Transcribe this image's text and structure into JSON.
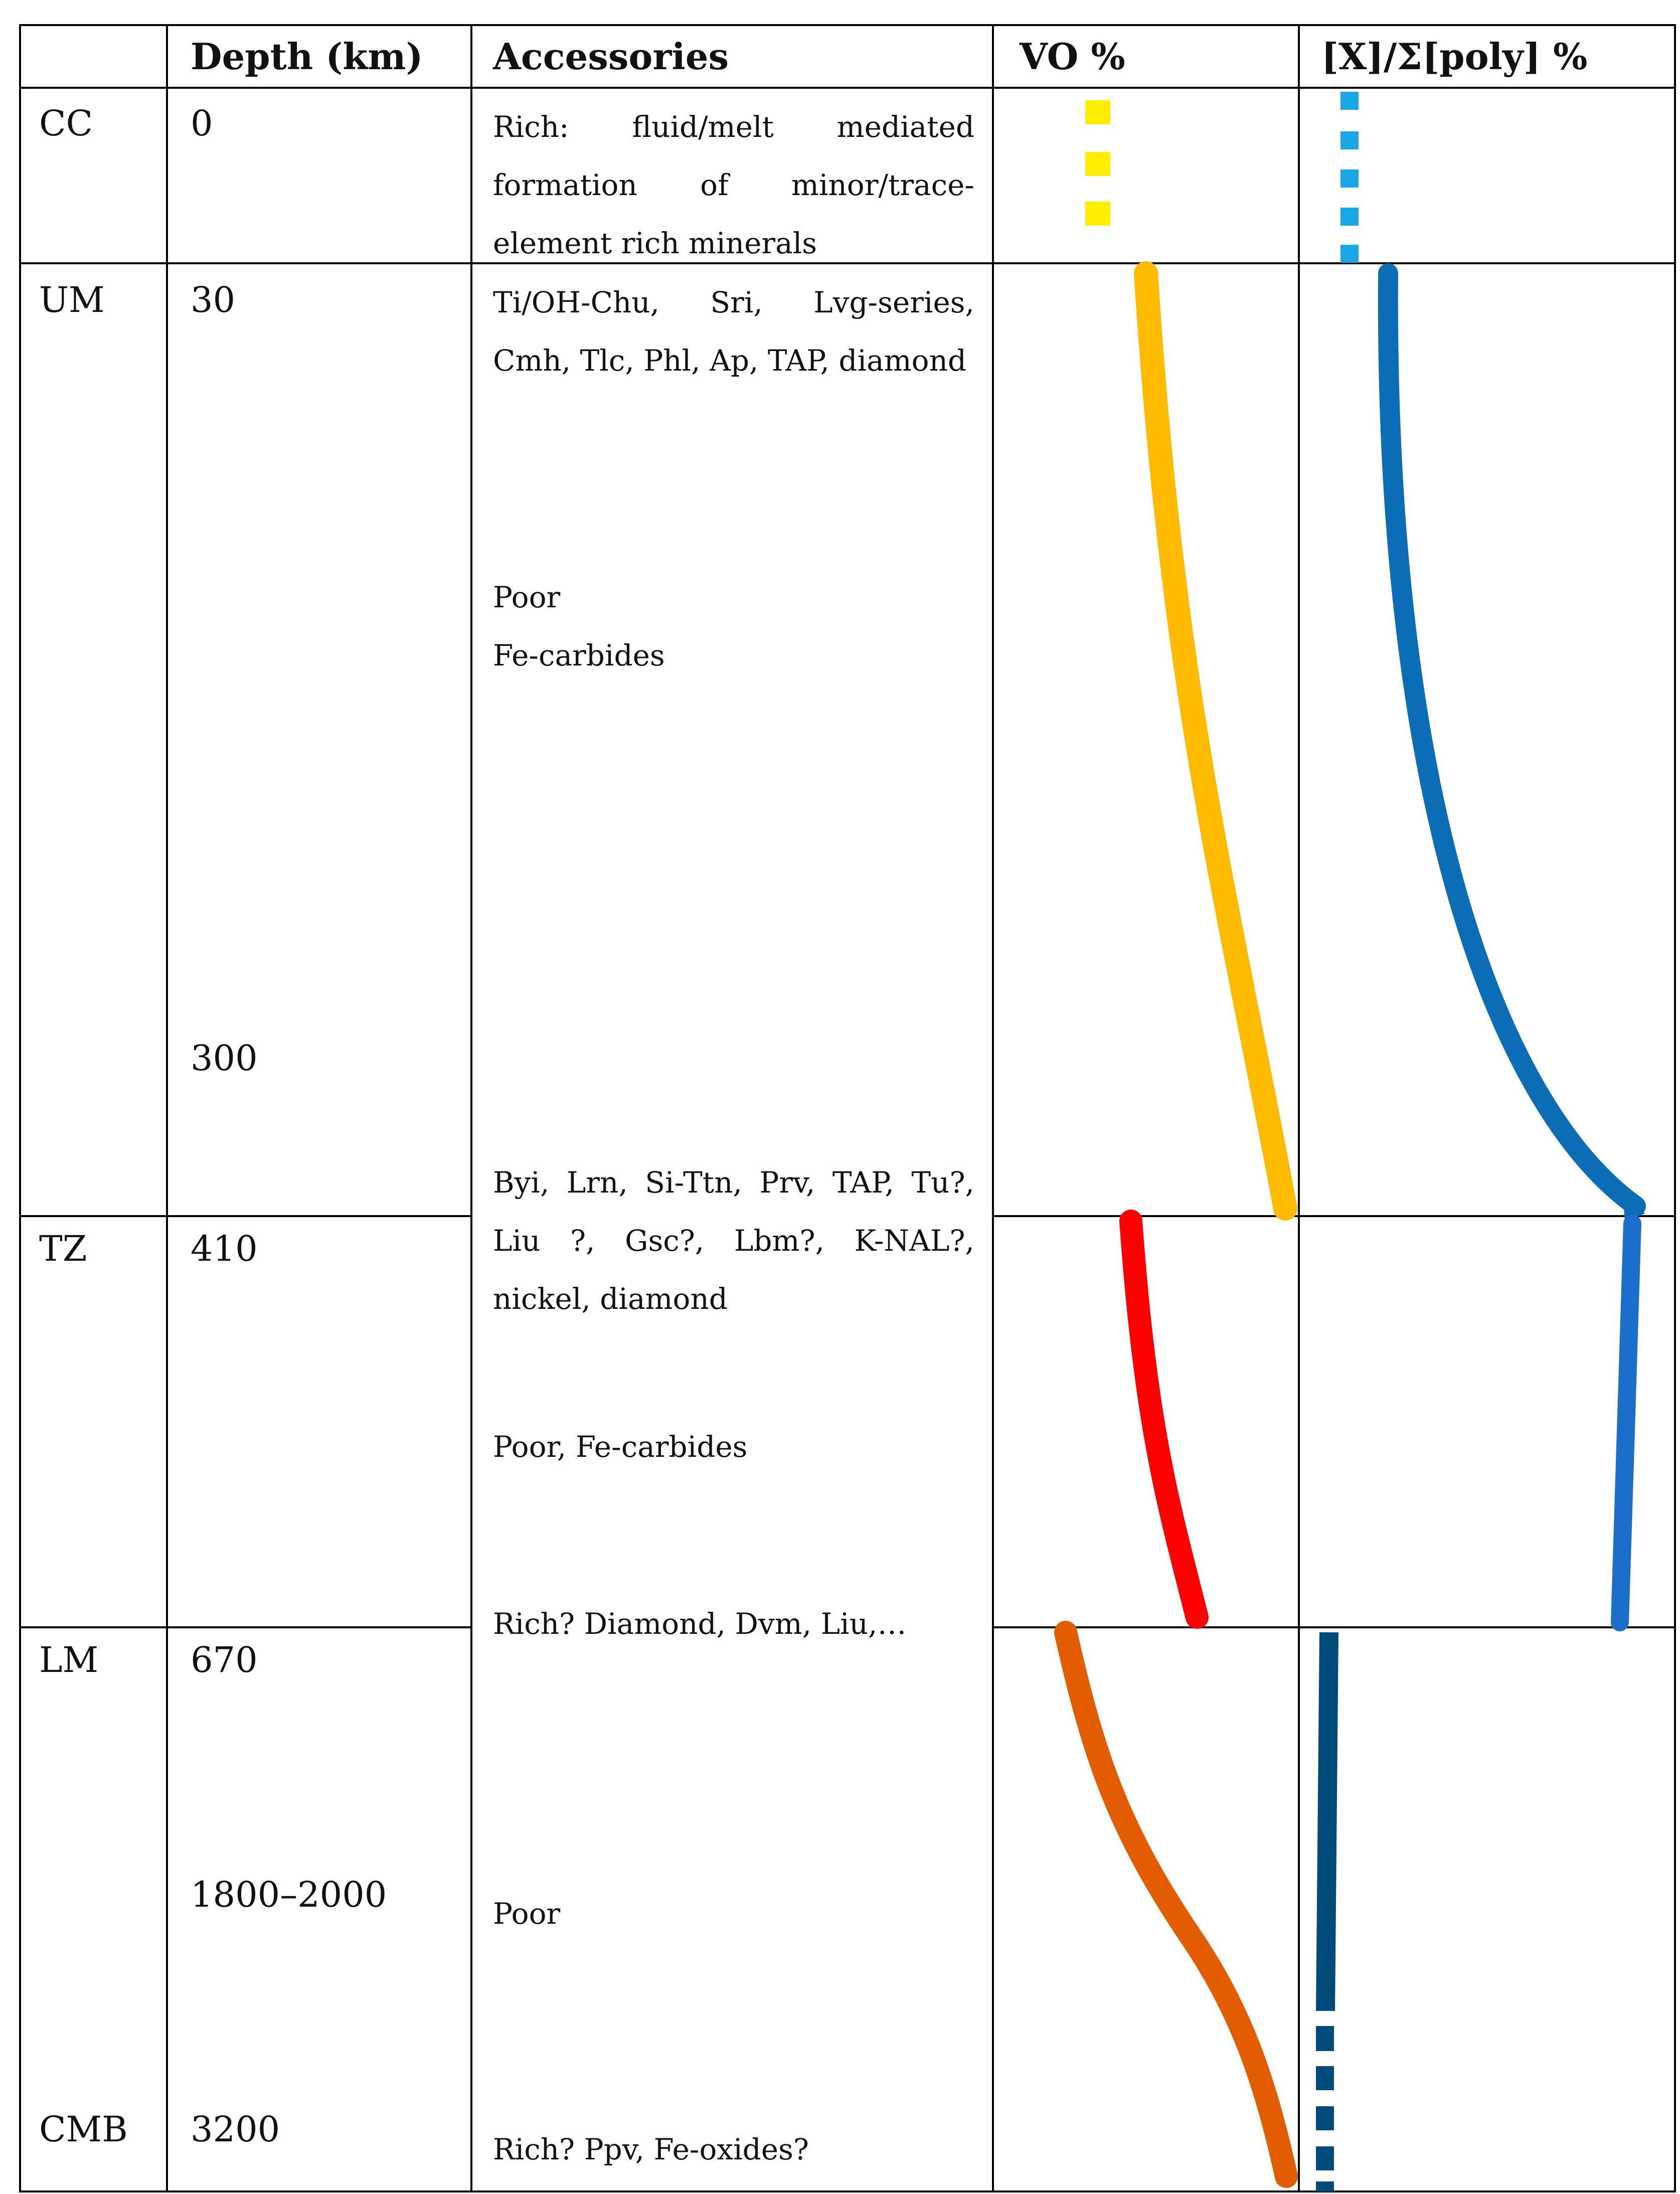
{
  "header": {
    "zone": "",
    "depth": "Depth (km)",
    "accessories": "Accessories",
    "vo": "VO %",
    "ratio": "[X]/Σ[poly] %"
  },
  "rows": [
    {
      "zone": "CC",
      "depths": [
        "0"
      ],
      "accessories": [
        "Rich: fluid/melt mediated formation of minor/trace-element rich minerals"
      ]
    },
    {
      "zone": "UM",
      "depths": [
        "30",
        "300"
      ],
      "accessories": [
        "Ti/OH-Chu, Sri, Lvg-series, Cmh, Tlc, Phl, Ap, TAP, diamond",
        "Poor",
        "Fe-carbides"
      ]
    },
    {
      "zone": "TZ",
      "depths": [
        "410"
      ],
      "accessories": [
        "Byi, Lrn, Si-Ttn, Prv, TAP, Tu?, Liu ?, Gsc?, Lbm?, K-NAL?, nickel, diamond",
        "Poor, Fe-carbides",
        "Rich? Diamond, Dvm, Liu,…"
      ]
    },
    {
      "zone": "LM",
      "depths": [
        "670",
        "1800–2000"
      ],
      "accessories": [
        "Poor"
      ]
    },
    {
      "zone": "CMB",
      "depths": [
        "3200"
      ],
      "accessories": [
        "Rich? Ppv, Fe-oxides?"
      ]
    }
  ],
  "curve_colors": {
    "cc_vo": "#ffee00",
    "cc_ratio": "#1aa7e6",
    "um_vo": "#ffbb00",
    "um_ratio": "#0b6db5",
    "tz_vo": "#ff0000",
    "tz_ratio": "#1b6fca",
    "lm_vo": "#e35c00",
    "lm_ratio": "#004b7a"
  }
}
